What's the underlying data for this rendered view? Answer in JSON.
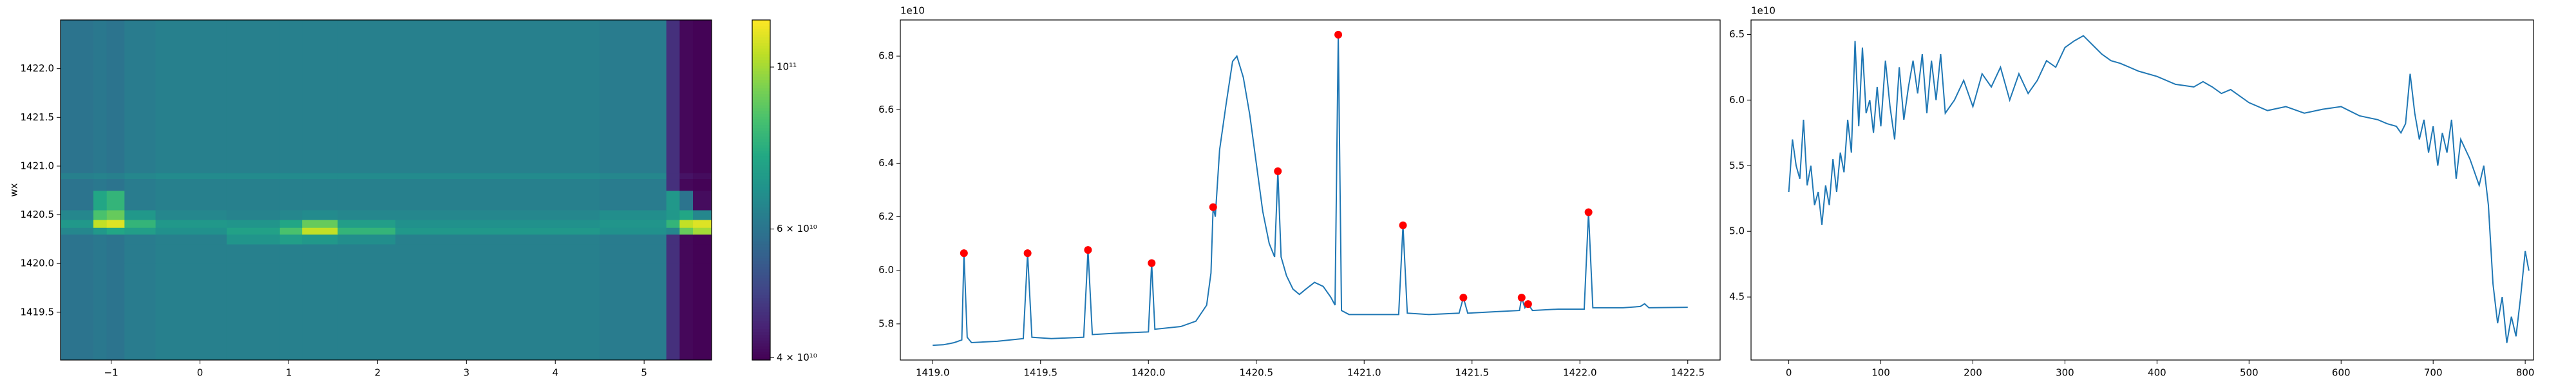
{
  "chart_data": [
    {
      "type": "heatmap",
      "ylabel": "wx",
      "xlim": [
        -1.57,
        5.76
      ],
      "ylim": [
        1419.01,
        1422.5
      ],
      "xticks": [
        {
          "value": -1,
          "label": "−1"
        },
        0,
        1,
        2,
        3,
        4,
        5
      ],
      "yticks": [
        1419.5,
        {
          "value": 1420,
          "label": "1420.0"
        },
        1420.5,
        {
          "value": 1421,
          "label": "1421.0"
        },
        1421.5,
        {
          "value": 1422,
          "label": "1422.0"
        }
      ],
      "x_edges": [
        -1.57,
        -1.2,
        -1.05,
        -0.85,
        -0.5,
        0.3,
        0.9,
        1.15,
        1.55,
        2.2,
        4.5,
        5.25,
        5.4,
        5.55,
        5.76
      ],
      "y_edges": [
        1419.01,
        1420.0,
        1420.2,
        1420.3,
        1420.37,
        1420.45,
        1420.55,
        1420.75,
        1420.87,
        1420.93,
        1422.5
      ],
      "z": [
        [
          60000000000.0,
          61000000000.0,
          60000000000.0,
          62000000000.0,
          63000000000.0,
          63000000000.0,
          63000000000.0,
          63000000000.0,
          63000000000.0,
          63000000000.0,
          62000000000.0,
          46000000000.0,
          40500000000.0,
          40000000000.0
        ],
        [
          60000000000.0,
          61000000000.0,
          60000000000.0,
          62000000000.0,
          63000000000.0,
          63000000000.0,
          63000000000.0,
          63000000000.0,
          63000000000.0,
          63000000000.0,
          62000000000.0,
          46000000000.0,
          40500000000.0,
          40000000000.0
        ],
        [
          60000000000.0,
          61000000000.0,
          60000000000.0,
          62000000000.0,
          63000000000.0,
          69000000000.0,
          72000000000.0,
          70000000000.0,
          67000000000.0,
          63000000000.0,
          62000000000.0,
          46000000000.0,
          40500000000.0,
          40000000000.0
        ],
        [
          65000000000.0,
          70000000000.0,
          75000000000.0,
          72000000000.0,
          68000000000.0,
          73000000000.0,
          85000000000.0,
          105000000000.0,
          80000000000.0,
          70000000000.0,
          68000000000.0,
          65000000000.0,
          90000000000.0,
          100000000000.0
        ],
        [
          70000000000.0,
          105000000000.0,
          110000000000.0,
          80000000000.0,
          70000000000.0,
          69000000000.0,
          75000000000.0,
          90000000000.0,
          72000000000.0,
          68000000000.0,
          69000000000.0,
          80000000000.0,
          105000000000.0,
          110000000000.0
        ],
        [
          65000000000.0,
          85000000000.0,
          90000000000.0,
          70000000000.0,
          65000000000.0,
          64000000000.0,
          65000000000.0,
          66000000000.0,
          65000000000.0,
          65000000000.0,
          67000000000.0,
          70000000000.0,
          75000000000.0,
          65000000000.0
        ],
        [
          60000000000.0,
          75000000000.0,
          80000000000.0,
          62000000000.0,
          63000000000.0,
          63000000000.0,
          63000000000.0,
          63000000000.0,
          63000000000.0,
          63000000000.0,
          62000000000.0,
          70000000000.0,
          60000000000.0,
          41000000000.0
        ],
        [
          60000000000.0,
          61000000000.0,
          60000000000.0,
          62000000000.0,
          63000000000.0,
          63000000000.0,
          63000000000.0,
          63000000000.0,
          63000000000.0,
          63000000000.0,
          62000000000.0,
          46000000000.0,
          40500000000.0,
          40000000000.0
        ],
        [
          63000000000.0,
          64000000000.0,
          63000000000.0,
          65000000000.0,
          66000000000.0,
          66000000000.0,
          66000000000.0,
          66000000000.0,
          66000000000.0,
          66000000000.0,
          65000000000.0,
          46000000000.0,
          42000000000.0,
          41000000000.0
        ],
        [
          60000000000.0,
          61000000000.0,
          60000000000.0,
          62000000000.0,
          63000000000.0,
          63000000000.0,
          63000000000.0,
          63000000000.0,
          63000000000.0,
          63000000000.0,
          62000000000.0,
          46000000000.0,
          40500000000.0,
          40000000000.0
        ]
      ],
      "colormap": "viridis",
      "colorbar": {
        "log": true,
        "lim": [
          39700000000.0,
          116000000000.0
        ],
        "ticks": [
          {
            "value": 40000000000.0,
            "label": "4 × 10¹⁰"
          },
          {
            "value": 60000000000.0,
            "label": "6 × 10¹⁰"
          },
          {
            "value": 100000000000.0,
            "label": "10¹¹"
          }
        ]
      }
    },
    {
      "type": "line",
      "offset_text": "1e10",
      "color": "#1f77b4",
      "xlim": [
        1418.85,
        1422.65
      ],
      "ylim": [
        5.665,
        6.935
      ],
      "xticks": [
        {
          "value": 1419,
          "label": "1419.0"
        },
        1419.5,
        {
          "value": 1420,
          "label": "1420.0"
        },
        1420.5,
        {
          "value": 1421,
          "label": "1421.0"
        },
        1421.5,
        {
          "value": 1422,
          "label": "1422.0"
        },
        1422.5
      ],
      "yticks": [
        5.8,
        {
          "value": 6,
          "label": "6.0"
        },
        6.2,
        6.4,
        6.6,
        6.8
      ],
      "x": [
        1419.0,
        1419.05,
        1419.1,
        1419.135,
        1419.145,
        1419.16,
        1419.18,
        1419.3,
        1419.42,
        1419.44,
        1419.46,
        1419.55,
        1419.7,
        1419.72,
        1419.74,
        1419.85,
        1420.0,
        1420.015,
        1420.03,
        1420.15,
        1420.22,
        1420.27,
        1420.29,
        1420.3,
        1420.31,
        1420.33,
        1420.36,
        1420.39,
        1420.41,
        1420.44,
        1420.47,
        1420.5,
        1420.53,
        1420.56,
        1420.585,
        1420.6,
        1420.615,
        1420.64,
        1420.67,
        1420.7,
        1420.73,
        1420.77,
        1420.81,
        1420.845,
        1420.865,
        1420.88,
        1420.895,
        1420.93,
        1421.05,
        1421.16,
        1421.18,
        1421.2,
        1421.3,
        1421.44,
        1421.46,
        1421.48,
        1421.6,
        1421.72,
        1421.73,
        1421.745,
        1421.76,
        1421.78,
        1421.9,
        1422.02,
        1422.04,
        1422.06,
        1422.2,
        1422.28,
        1422.3,
        1422.32,
        1422.5
      ],
      "values": [
        5.72,
        5.722,
        5.73,
        5.74,
        6.064,
        5.75,
        5.73,
        5.735,
        5.745,
        6.064,
        5.75,
        5.745,
        5.75,
        6.076,
        5.76,
        5.765,
        5.77,
        6.027,
        5.78,
        5.79,
        5.81,
        5.87,
        5.99,
        6.236,
        6.2,
        6.45,
        6.62,
        6.78,
        6.8,
        6.72,
        6.58,
        6.4,
        6.22,
        6.1,
        6.05,
        6.37,
        6.05,
        5.98,
        5.93,
        5.91,
        5.93,
        5.955,
        5.94,
        5.9,
        5.87,
        6.88,
        5.85,
        5.835,
        5.835,
        5.835,
        6.168,
        5.84,
        5.835,
        5.84,
        5.898,
        5.84,
        5.845,
        5.85,
        5.898,
        5.86,
        5.874,
        5.85,
        5.855,
        5.855,
        6.217,
        5.86,
        5.86,
        5.865,
        5.875,
        5.86,
        5.862
      ],
      "peaks": {
        "color": "#ff0000",
        "x": [
          1419.145,
          1419.44,
          1419.72,
          1420.015,
          1420.3,
          1420.6,
          1420.88,
          1421.18,
          1421.46,
          1421.73,
          1421.76,
          1422.04
        ],
        "values": [
          6.064,
          6.064,
          6.076,
          6.027,
          6.236,
          6.37,
          6.88,
          6.168,
          5.898,
          5.898,
          5.874,
          6.217
        ]
      }
    },
    {
      "type": "line",
      "offset_text": "1e10",
      "color": "#1f77b4",
      "xlim": [
        -41,
        809
      ],
      "ylim": [
        4.02,
        6.61
      ],
      "xticks": [
        0,
        100,
        200,
        300,
        400,
        500,
        600,
        700,
        800
      ],
      "yticks": [
        4.5,
        {
          "value": 5,
          "label": "5.0"
        },
        5.5,
        {
          "value": 6,
          "label": "6.0"
        },
        6.5
      ],
      "x": [
        0,
        4,
        8,
        12,
        16,
        20,
        24,
        28,
        32,
        36,
        40,
        44,
        48,
        52,
        56,
        60,
        64,
        68,
        72,
        76,
        80,
        84,
        88,
        92,
        96,
        100,
        105,
        110,
        115,
        120,
        125,
        130,
        135,
        140,
        145,
        150,
        155,
        160,
        165,
        170,
        180,
        190,
        200,
        210,
        220,
        230,
        240,
        250,
        260,
        270,
        280,
        290,
        300,
        310,
        320,
        330,
        340,
        350,
        360,
        380,
        400,
        420,
        440,
        450,
        460,
        470,
        480,
        500,
        520,
        540,
        560,
        580,
        600,
        620,
        640,
        650,
        660,
        665,
        670,
        675,
        680,
        685,
        690,
        695,
        700,
        705,
        710,
        715,
        720,
        725,
        730,
        740,
        750,
        755,
        760,
        765,
        770,
        775,
        780,
        785,
        790,
        795,
        800,
        804
      ],
      "values": [
        5.3,
        5.7,
        5.5,
        5.4,
        5.85,
        5.35,
        5.5,
        5.2,
        5.3,
        5.05,
        5.35,
        5.2,
        5.55,
        5.3,
        5.6,
        5.45,
        5.85,
        5.6,
        6.45,
        5.8,
        6.4,
        5.9,
        6.0,
        5.75,
        6.1,
        5.8,
        6.3,
        5.95,
        5.7,
        6.25,
        5.85,
        6.1,
        6.3,
        6.05,
        6.35,
        5.9,
        6.3,
        6.0,
        6.35,
        5.9,
        6.0,
        6.15,
        5.95,
        6.2,
        6.1,
        6.25,
        6.0,
        6.2,
        6.05,
        6.15,
        6.3,
        6.25,
        6.4,
        6.45,
        6.49,
        6.42,
        6.35,
        6.3,
        6.28,
        6.22,
        6.18,
        6.12,
        6.1,
        6.14,
        6.1,
        6.05,
        6.08,
        5.98,
        5.92,
        5.95,
        5.9,
        5.93,
        5.95,
        5.88,
        5.85,
        5.82,
        5.8,
        5.75,
        5.82,
        6.2,
        5.9,
        5.7,
        5.85,
        5.6,
        5.8,
        5.5,
        5.75,
        5.6,
        5.85,
        5.4,
        5.7,
        5.55,
        5.35,
        5.5,
        5.2,
        4.6,
        4.3,
        4.5,
        4.15,
        4.35,
        4.2,
        4.5,
        4.85,
        4.7
      ]
    }
  ]
}
